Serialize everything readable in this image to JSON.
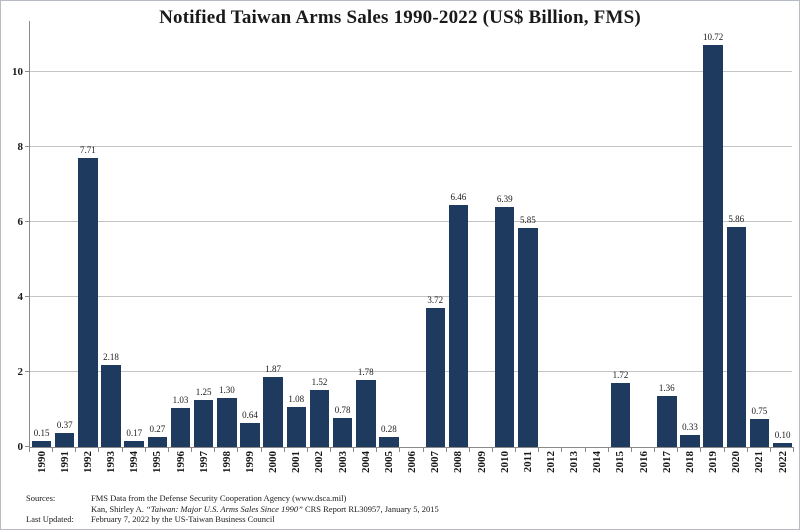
{
  "title": "Notified Taiwan Arms Sales 1990-2022 (US$ Billion, FMS)",
  "chart_data": {
    "type": "bar",
    "title": "Notified Taiwan Arms Sales 1990-2022 (US$ Billion, FMS)",
    "xlabel": "",
    "ylabel": "",
    "categories": [
      "1990",
      "1991",
      "1992",
      "1993",
      "1994",
      "1995",
      "1996",
      "1997",
      "1998",
      "1999",
      "2000",
      "2001",
      "2002",
      "2003",
      "2004",
      "2005",
      "2006",
      "2007",
      "2008",
      "2009",
      "2010",
      "2011",
      "2012",
      "2013",
      "2014",
      "2015",
      "2016",
      "2017",
      "2018",
      "2019",
      "2020",
      "2021",
      "2022"
    ],
    "values": [
      0.15,
      0.37,
      7.71,
      2.18,
      0.17,
      0.27,
      1.03,
      1.25,
      1.3,
      0.64,
      1.87,
      1.08,
      1.52,
      0.78,
      1.78,
      0.28,
      0,
      3.72,
      6.46,
      0,
      6.39,
      5.85,
      0,
      0,
      0,
      1.72,
      0,
      1.36,
      0.33,
      10.72,
      5.86,
      0.75,
      0.1
    ],
    "bar_labels": [
      "0.15",
      "0.37",
      "7.71",
      "2.18",
      "0.17",
      "0.27",
      "1.03",
      "1.25",
      "1.30",
      "0.64",
      "1.87",
      "1.08",
      "1.52",
      "0.78",
      "1.78",
      "0.28",
      "",
      "3.72",
      "6.46",
      "",
      "6.39",
      "5.85",
      "",
      "",
      "",
      "1.72",
      "",
      "1.36",
      "0.33",
      "10.72",
      "5.86",
      "0.75",
      "0.10"
    ],
    "yticks": [
      0,
      2,
      4,
      6,
      8,
      10
    ],
    "ylim": [
      0,
      11.36
    ],
    "grid": "horizontal",
    "legend": "none",
    "bar_color": "#1e3a5f",
    "gridline_color": "#c4c4c4",
    "axis_color": "#8a8a8a"
  },
  "footer": {
    "sources_label": "Sources:",
    "source_line1": "FMS Data from the Defense Security Cooperation Agency (www.dsca.mil)",
    "source_line2_prefix": "Kan, Shirley A. ",
    "source_line2_italic": "“Taiwan: Major U.S. Arms Sales Since 1990”",
    "source_line2_suffix": " CRS Report RL30957, January 5, 2015",
    "last_updated_label": "Last Updated:",
    "last_updated_value": "February 7, 2022 by the US-Taiwan Business Council"
  }
}
